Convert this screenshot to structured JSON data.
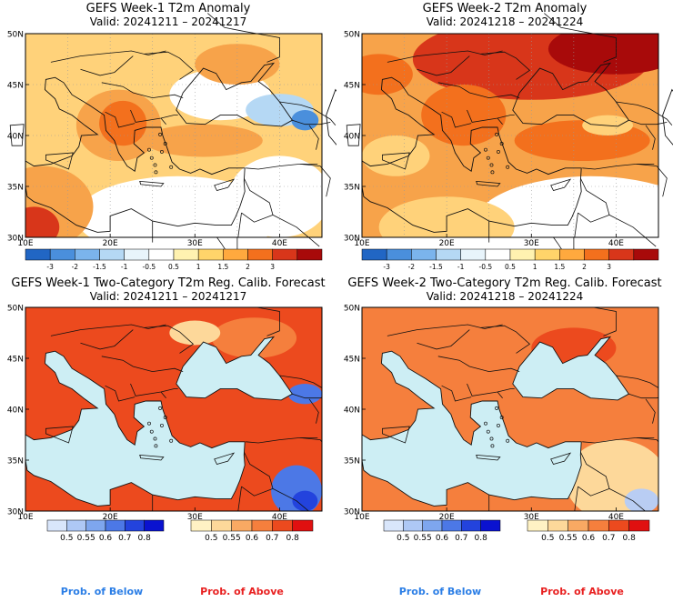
{
  "panels": [
    {
      "id": "p1",
      "title": "GEFS Week-1 T2m Anomaly",
      "valid": "Valid: 20241211 – 20241217",
      "kind": "anomaly",
      "theme": "warm-moderate",
      "lat_ticks": [
        "50N",
        "45N",
        "40N",
        "35N",
        "30N"
      ],
      "lon_ticks": [
        "10E",
        "20E",
        "30E",
        "40E"
      ]
    },
    {
      "id": "p2",
      "title": "GEFS Week-2 T2m Anomaly",
      "valid": "Valid: 20241218 – 20241224",
      "kind": "anomaly",
      "theme": "warm-strong",
      "lat_ticks": [
        "50N",
        "45N",
        "40N",
        "35N",
        "30N"
      ],
      "lon_ticks": [
        "10E",
        "20E",
        "30E",
        "40E"
      ]
    },
    {
      "id": "p3",
      "title": "GEFS Week-1 Two-Category T2m Reg. Calib. Forecast",
      "valid": "Valid: 20241211 – 20241217",
      "kind": "prob",
      "theme": "prob-strong",
      "lat_ticks": [
        "50N",
        "45N",
        "40N",
        "35N",
        "30N"
      ],
      "lon_ticks": [
        "10E",
        "20E",
        "30E",
        "40E"
      ]
    },
    {
      "id": "p4",
      "title": "GEFS Week-2 Two-Category T2m Reg. Calib. Forecast",
      "valid": "Valid: 20241218 – 20241224",
      "kind": "prob",
      "theme": "prob-moderate",
      "lat_ticks": [
        "50N",
        "45N",
        "40N",
        "35N",
        "30N"
      ],
      "lon_ticks": [
        "10E",
        "20E",
        "30E",
        "40E"
      ]
    }
  ],
  "anomaly_colorbar": {
    "labels": [
      "-3",
      "-2",
      "-1.5",
      "-1",
      "-0.5",
      "0.5",
      "1",
      "1.5",
      "2",
      "3"
    ],
    "colors": [
      "#2166c4",
      "#4a8fdc",
      "#7bb4ec",
      "#b5d8f4",
      "#e8f4fb",
      "#ffffff",
      "#fff2b0",
      "#ffd46a",
      "#ffa93e",
      "#f3701d",
      "#d8361a",
      "#a80a0a"
    ]
  },
  "below_colorbar": {
    "labels": [
      "0.5",
      "0.55",
      "0.6",
      "0.7",
      "0.8"
    ],
    "colors": [
      "#d9e6fb",
      "#aec8f5",
      "#7ea6ee",
      "#4c78e6",
      "#2343dd",
      "#0a12d0"
    ],
    "caption": "Prob. of Below",
    "caption_color": "#2b7ee6"
  },
  "above_colorbar": {
    "labels": [
      "0.5",
      "0.55",
      "0.6",
      "0.7",
      "0.8"
    ],
    "colors": [
      "#fff2c4",
      "#fdd89a",
      "#f9a963",
      "#f57f3d",
      "#ec4a1e",
      "#e01010"
    ],
    "caption": "Prob. of Above",
    "caption_color": "#e82020"
  },
  "colors": {
    "land_warm1": "#ffd27a",
    "land_warm2": "#f7a34a",
    "land_warm3": "#f3701d",
    "land_warm4": "#d8361a",
    "land_warm5": "#a80a0a",
    "neutral": "#ffffff",
    "cool1": "#b5d8f4",
    "cool2": "#4a8fdc",
    "sea_prob": "#cdeef4",
    "prob_above_strong": "#ec4a1e",
    "prob_above_mid": "#f57f3d",
    "prob_above_light": "#fdd89a",
    "prob_below_mid": "#4c78e6",
    "prob_below_strong": "#2343dd"
  }
}
